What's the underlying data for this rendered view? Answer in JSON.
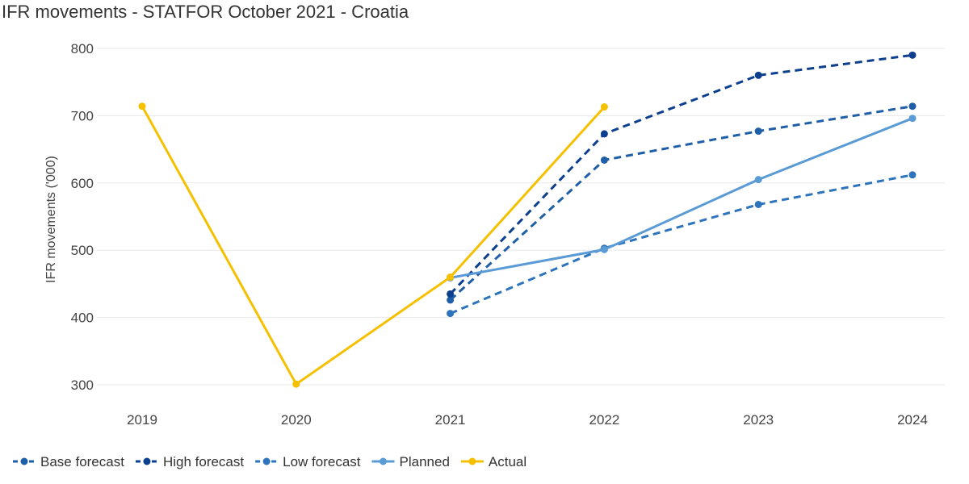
{
  "chart_data": {
    "type": "line",
    "title": "IFR movements - STATFOR October 2021 - Croatia",
    "xlabel": "",
    "ylabel": "IFR movements ('000)",
    "categories": [
      "2019",
      "2020",
      "2021",
      "2022",
      "2023",
      "2024"
    ],
    "yticks": [
      300,
      400,
      500,
      600,
      700,
      800
    ],
    "ylim": [
      280,
      810
    ],
    "grid": true,
    "legend_position": "bottom-left",
    "series": [
      {
        "name": "Base forecast",
        "color": "#1f5fa8",
        "dashed": true,
        "values": [
          null,
          null,
          426,
          634,
          677,
          714
        ]
      },
      {
        "name": "High forecast",
        "color": "#0d3f8f",
        "dashed": true,
        "values": [
          null,
          null,
          435,
          673,
          760,
          790
        ]
      },
      {
        "name": "Low forecast",
        "color": "#2d74bc",
        "dashed": true,
        "values": [
          null,
          null,
          406,
          503,
          568,
          612
        ]
      },
      {
        "name": "Planned",
        "color": "#5b9bd5",
        "dashed": false,
        "values": [
          null,
          null,
          459,
          501,
          605,
          696
        ]
      },
      {
        "name": "Actual",
        "color": "#f5c000",
        "dashed": false,
        "values": [
          714,
          301,
          460,
          713,
          null,
          null
        ]
      }
    ]
  }
}
